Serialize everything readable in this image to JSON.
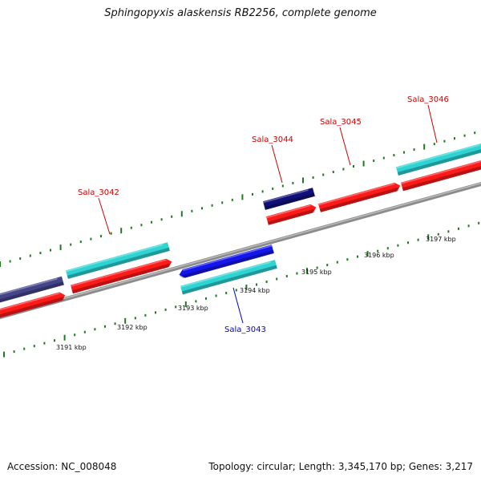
{
  "title": "Sphingopyxis alaskensis RB2256, complete genome",
  "footer": {
    "accession": "Accession: NC_008048",
    "summary": "Topology: circular; Length: 3,345,170 bp; Genes: 3,217"
  },
  "colors": {
    "backbone": "#8c8c8c",
    "tick": "#1f7a1f",
    "forward_cds": "#ff1a1a",
    "reverse_cds": "#2ed3d3",
    "dark_blue_feature": "#10107a",
    "blue_feature": "#1515ee",
    "slate_feature": "#44448a",
    "forward_label": "#cc0000",
    "reverse_label": "#0000cc"
  },
  "scale_labels": [
    "3191 kbp",
    "3192 kbp",
    "3193 kbp",
    "3194 kbp",
    "3195 kbp",
    "3196 kbp",
    "3197 kbp"
  ],
  "gene_labels": [
    {
      "name": "Sala_3042",
      "strand": "forward"
    },
    {
      "name": "Sala_3043",
      "strand": "reverse"
    },
    {
      "name": "Sala_3044",
      "strand": "forward"
    },
    {
      "name": "Sala_3045",
      "strand": "forward"
    },
    {
      "name": "Sala_3046",
      "strand": "forward"
    }
  ]
}
